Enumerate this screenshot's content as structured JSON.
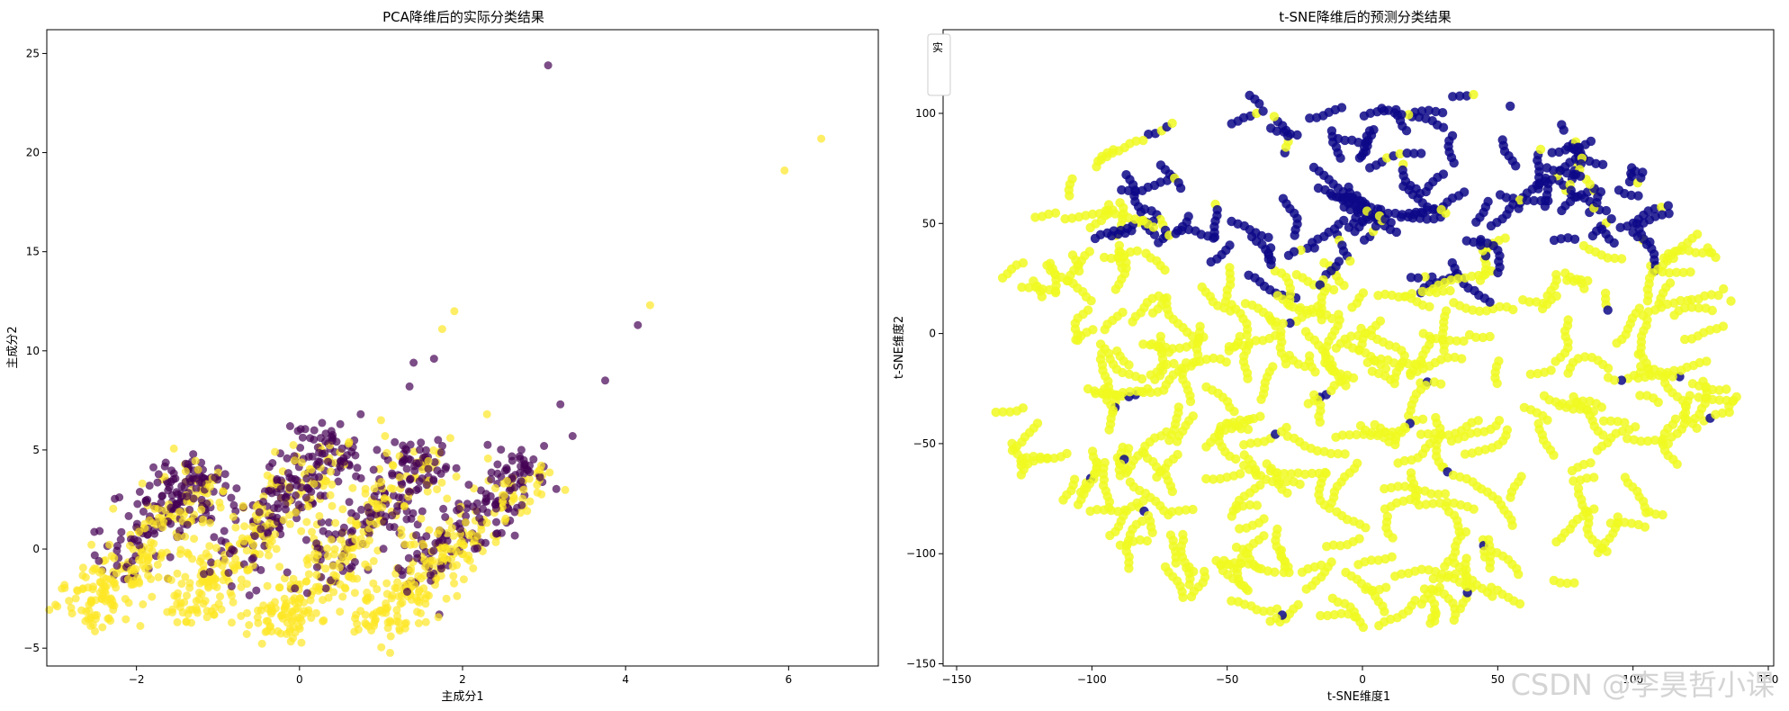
{
  "chart_data": [
    {
      "type": "scatter",
      "title": "PCA降维后的实际分类结果",
      "xlabel": "主成分1",
      "ylabel": "主成分2",
      "xlim": [
        -3.1,
        7.1
      ],
      "ylim": [
        -5.9,
        26.2
      ],
      "xticks": [
        -2,
        0,
        2,
        4,
        6
      ],
      "yticks": [
        -5,
        0,
        5,
        10,
        15,
        20,
        25
      ],
      "x_tick_labels": [
        "−2",
        "0",
        "2",
        "4",
        "6"
      ],
      "y_tick_labels": [
        "−5",
        "0",
        "5",
        "10",
        "15",
        "20",
        "25"
      ],
      "grid": false,
      "colors": {
        "class_0": "#440154",
        "class_1": "#fde725"
      },
      "marker_alpha": 0.7,
      "clusters": [
        {
          "x_center": -2.0,
          "x_range": [
            -2.75,
            -1.1
          ],
          "y_range": [
            -3.6,
            4.1
          ]
        },
        {
          "x_center": -0.6,
          "x_range": [
            -1.5,
            0.5
          ],
          "y_range": [
            -3.6,
            5.6
          ]
        },
        {
          "x_center": 0.6,
          "x_range": [
            -0.4,
            1.6
          ],
          "y_range": [
            -4.4,
            5.0
          ]
        },
        {
          "x_center": 1.9,
          "x_range": [
            0.8,
            2.9
          ],
          "y_range": [
            -4.2,
            4.3
          ]
        }
      ],
      "outliers": [
        {
          "x": 3.05,
          "y": 24.4,
          "class": 0
        },
        {
          "x": 6.4,
          "y": 20.7,
          "class": 1
        },
        {
          "x": 5.95,
          "y": 19.1,
          "class": 1
        },
        {
          "x": 4.3,
          "y": 12.3,
          "class": 1
        },
        {
          "x": 4.15,
          "y": 11.3,
          "class": 0
        },
        {
          "x": 1.9,
          "y": 12.0,
          "class": 1
        },
        {
          "x": 1.75,
          "y": 11.1,
          "class": 1
        },
        {
          "x": 1.4,
          "y": 9.4,
          "class": 0
        },
        {
          "x": 1.65,
          "y": 9.6,
          "class": 0
        },
        {
          "x": 1.35,
          "y": 8.2,
          "class": 0
        },
        {
          "x": 3.75,
          "y": 8.5,
          "class": 0
        },
        {
          "x": 3.2,
          "y": 7.3,
          "class": 0
        },
        {
          "x": 3.35,
          "y": 5.7,
          "class": 0
        },
        {
          "x": 0.75,
          "y": 6.8,
          "class": 0
        },
        {
          "x": 0.5,
          "y": 6.3,
          "class": 0
        },
        {
          "x": 1.0,
          "y": 6.5,
          "class": 1
        },
        {
          "x": 2.3,
          "y": 6.8,
          "class": 1
        },
        {
          "x": 1.85,
          "y": 5.6,
          "class": 1
        },
        {
          "x": 3.0,
          "y": 5.2,
          "class": 0
        },
        {
          "x": 0.55,
          "y": 4.4,
          "class": 0
        },
        {
          "x": 0.35,
          "y": 4.4,
          "class": 0
        },
        {
          "x": -0.3,
          "y": 4.9,
          "class": 1
        },
        {
          "x": 0.95,
          "y": 5.0,
          "class": 0
        },
        {
          "x": 1.15,
          "y": 4.2,
          "class": 1
        },
        {
          "x": 1.7,
          "y": 5.5,
          "class": 0
        },
        {
          "x": 1.05,
          "y": 5.7,
          "class": 1
        },
        {
          "x": 2.95,
          "y": 4.0,
          "class": 1
        }
      ]
    },
    {
      "type": "scatter",
      "title": "t-SNE降维后的预测分类结果",
      "xlabel": "t-SNE维度1",
      "ylabel": "t-SNE维度2",
      "xlim": [
        -155,
        152
      ],
      "ylim": [
        -151,
        138
      ],
      "xticks": [
        -150,
        -100,
        -50,
        0,
        50,
        100,
        150
      ],
      "yticks": [
        -150,
        -100,
        -50,
        0,
        50,
        100
      ],
      "x_tick_labels": [
        "−150",
        "−100",
        "−50",
        "0",
        "50",
        "100",
        "150"
      ],
      "y_tick_labels": [
        "−150",
        "−100",
        "−50",
        "0",
        "50",
        "100"
      ],
      "grid": false,
      "colors": {
        "class_0": "#0d0887",
        "class_1": "#f0f921"
      },
      "legend_title": "实",
      "legend_position": "top-left",
      "description_region": {
        "class_1_disc_center": [
          0,
          -10
        ],
        "class_1_disc_radius_x": 140,
        "class_1_disc_radius_y": 125,
        "class_0_cap_center": [
          15,
          80
        ],
        "class_0_cap_radius_x": 130,
        "class_0_cap_radius_y": 58
      }
    }
  ],
  "watermark": "CSDN @李昊哲小课"
}
